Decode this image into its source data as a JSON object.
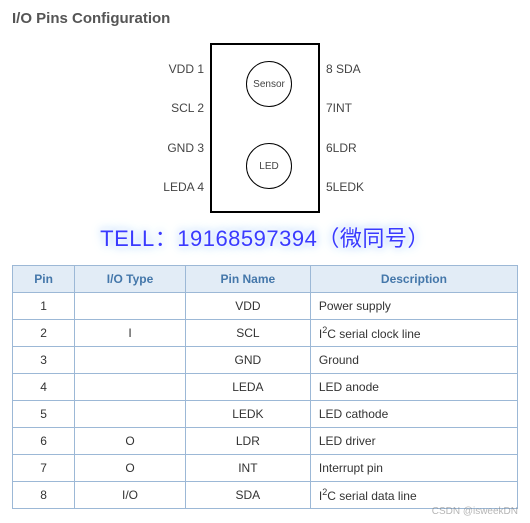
{
  "title": "I/O Pins Configuration",
  "diagram": {
    "left": [
      "VDD 1",
      "SCL 2",
      "GND 3",
      "LEDA 4"
    ],
    "right": [
      "8 SDA",
      "7INT",
      "6LDR",
      "5LEDK"
    ],
    "sensor_label": "Sensor",
    "led_label": "LED"
  },
  "overlay_text": "TELL：19168597394（微同号）",
  "table": {
    "headers": [
      "Pin",
      "I/O Type",
      "Pin Name",
      "Description"
    ],
    "rows": [
      {
        "pin": "1",
        "io": "",
        "name": "VDD",
        "desc": "Power supply",
        "i2c": false
      },
      {
        "pin": "2",
        "io": "I",
        "name": "SCL",
        "desc": "C serial clock line",
        "i2c": true
      },
      {
        "pin": "3",
        "io": "",
        "name": "GND",
        "desc": "Ground",
        "i2c": false
      },
      {
        "pin": "4",
        "io": "",
        "name": "LEDA",
        "desc": "LED anode",
        "i2c": false
      },
      {
        "pin": "5",
        "io": "",
        "name": "LEDK",
        "desc": "LED cathode",
        "i2c": false
      },
      {
        "pin": "6",
        "io": "O",
        "name": "LDR",
        "desc": "LED driver",
        "i2c": false
      },
      {
        "pin": "7",
        "io": "O",
        "name": "INT",
        "desc": "Interrupt pin",
        "i2c": false
      },
      {
        "pin": "8",
        "io": "I/O",
        "name": "SDA",
        "desc": "C serial data line",
        "i2c": true
      }
    ]
  },
  "watermark": "CSDN @isweekDN"
}
